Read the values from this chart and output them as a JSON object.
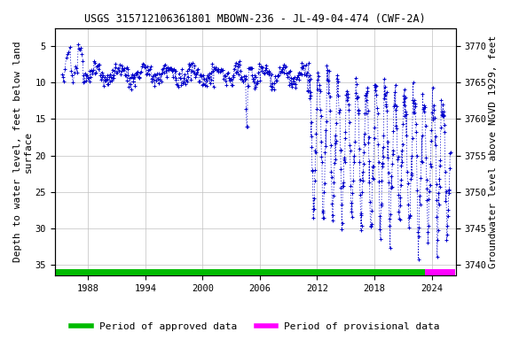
{
  "title": "USGS 315712106361801 MBOWN-236 - JL-49-04-474 (CWF-2A)",
  "ylabel_left": "Depth to water level, feet below land\nsurface",
  "ylabel_right": "Groundwater level above NGVD 1929, feet",
  "ylim_left": [
    36.5,
    2.5
  ],
  "ylim_right": [
    3738.5,
    3772.5
  ],
  "yticks_left": [
    5,
    10,
    15,
    20,
    25,
    30,
    35
  ],
  "yticks_right": [
    3740,
    3745,
    3750,
    3755,
    3760,
    3765,
    3770
  ],
  "xlim": [
    1984.5,
    2026.5
  ],
  "xticks": [
    1988,
    1994,
    2000,
    2006,
    2012,
    2018,
    2024
  ],
  "approved_bar_start": 1984.5,
  "approved_bar_end": 2023.3,
  "provisional_bar_start": 2023.3,
  "provisional_bar_end": 2026.5,
  "plot_color": "#0000CC",
  "approved_color": "#00BB00",
  "provisional_color": "#FF00FF",
  "background_color": "#FFFFFF",
  "grid_color": "#C0C0C0",
  "title_fontsize": 8.5,
  "axis_label_fontsize": 8,
  "tick_fontsize": 7.5,
  "legend_fontsize": 8
}
